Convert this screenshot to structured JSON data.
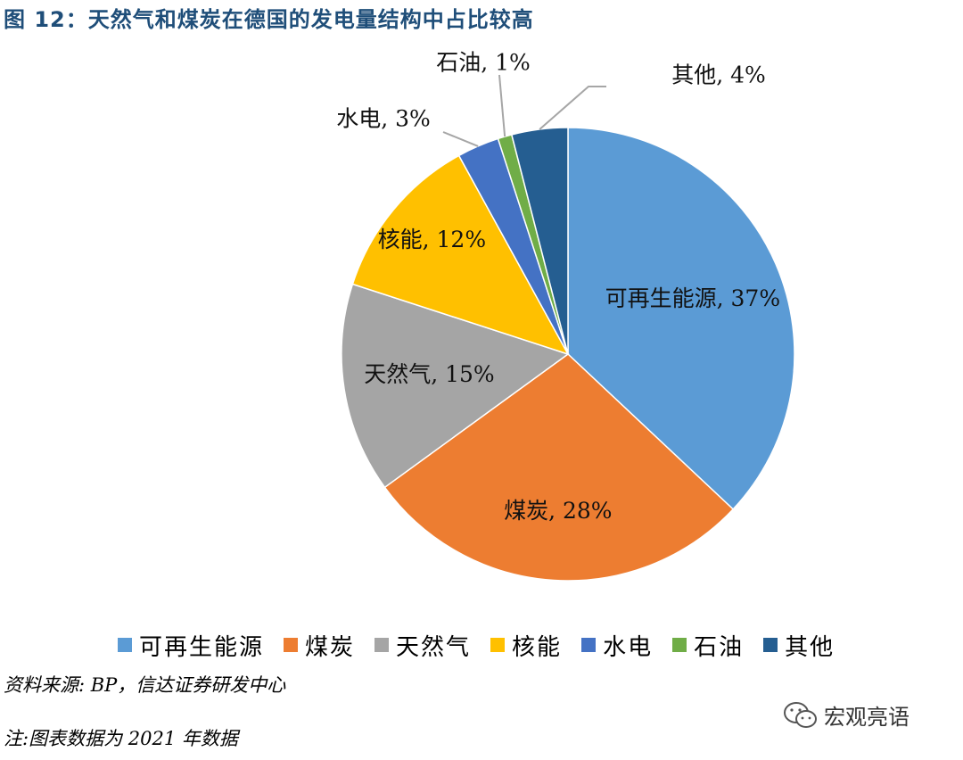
{
  "figure": {
    "title": "图 12：天然气和煤炭在德国的发电量结构中占比较高",
    "source": "资料来源: BP，信达证券研发中心",
    "note": "注:图表数据为 2021 年数据",
    "watermark": "宏观亮语"
  },
  "chart_data": {
    "type": "pie",
    "title": "",
    "unit": "%",
    "start_angle": "top (12 o'clock), clockwise",
    "legend_position": "bottom",
    "slices": [
      {
        "name": "可再生能源",
        "value": 37,
        "label": "可再生能源, 37%",
        "color": "#5b9bd5"
      },
      {
        "name": "煤炭",
        "value": 28,
        "label": "煤炭, 28%",
        "color": "#ed7d31"
      },
      {
        "name": "天然气",
        "value": 15,
        "label": "天然气, 15%",
        "color": "#a5a5a5"
      },
      {
        "name": "核能",
        "value": 12,
        "label": "核能, 12%",
        "color": "#ffc000"
      },
      {
        "name": "水电",
        "value": 3,
        "label": "水电, 3%",
        "color": "#4472c4"
      },
      {
        "name": "石油",
        "value": 1,
        "label": "石油, 1%",
        "color": "#70ad47"
      },
      {
        "name": "其他",
        "value": 4,
        "label": "其他, 4%",
        "color": "#255e91"
      }
    ]
  }
}
